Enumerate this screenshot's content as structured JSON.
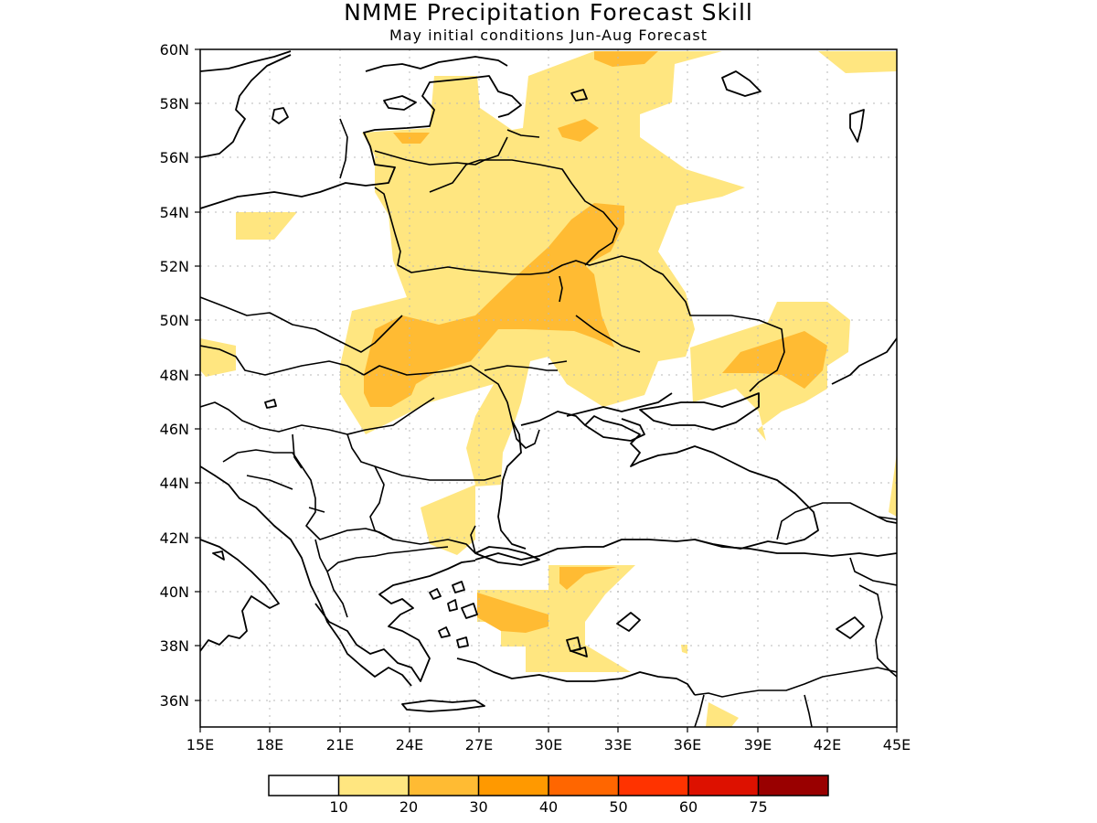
{
  "header": {
    "title": "NMME Precipitation Forecast Skill",
    "subtitle": "May initial conditions  Jun-Aug Forecast"
  },
  "map": {
    "lon_range": [
      15,
      45
    ],
    "lat_range": [
      35,
      60
    ],
    "lon_ticks": [
      15,
      18,
      21,
      24,
      27,
      30,
      33,
      36,
      39,
      42,
      45
    ],
    "lon_tick_labels": [
      "15E",
      "18E",
      "21E",
      "24E",
      "27E",
      "30E",
      "33E",
      "36E",
      "39E",
      "42E",
      "45E"
    ],
    "lat_ticks": [
      36,
      38,
      40,
      42,
      44,
      46,
      48,
      50,
      52,
      54,
      56,
      58,
      60
    ],
    "lat_tick_labels": [
      "36N",
      "38N",
      "40N",
      "42N",
      "44N",
      "46N",
      "48N",
      "50N",
      "52N",
      "54N",
      "56N",
      "58N",
      "60N"
    ],
    "grid": true
  },
  "colors": {
    "c0": "#ffffff",
    "c10": "#ffe680",
    "c20": "#ffbb33",
    "c30": "#ff9900",
    "c40": "#ff6600",
    "c50": "#ff3300",
    "c60": "#dd1100",
    "c75": "#990000"
  },
  "colorbar": {
    "labels": [
      "10",
      "20",
      "30",
      "40",
      "50",
      "60",
      "75"
    ],
    "colors": [
      "#ffffff",
      "#ffe680",
      "#ffbb33",
      "#ff9900",
      "#ff6600",
      "#ff3300",
      "#dd1100",
      "#990000"
    ]
  }
}
